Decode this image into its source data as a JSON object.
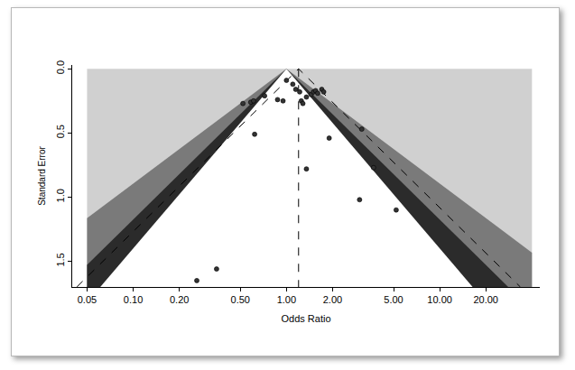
{
  "chart_data": {
    "type": "scatter",
    "x_label": "Odds Ratio",
    "y_label": "Standard Error",
    "log": "x",
    "grid": false,
    "xlim": [
      0.04,
      45
    ],
    "ylim": [
      1.7,
      -0.03
    ],
    "xticks": [
      0.05,
      {
        "value": 0.1,
        "label": "0.10"
      },
      {
        "value": 0.2,
        "label": "0.20"
      },
      {
        "value": 0.5,
        "label": "0.50"
      },
      {
        "value": 1,
        "label": "1.00"
      },
      {
        "value": 2,
        "label": "2.00"
      },
      {
        "value": 5,
        "label": "5.00"
      },
      {
        "value": 10,
        "label": "10.00"
      },
      {
        "value": 20,
        "label": "20.00"
      }
    ],
    "yticks": [
      {
        "value": 0,
        "label": "0.0"
      },
      0.5,
      {
        "value": 1,
        "label": "1.0"
      },
      {
        "value": 1.5,
        "label": "1.5"
      }
    ],
    "series": [
      {
        "type": "area",
        "color": "#d0d0d0",
        "x": [
          0.05,
          40,
          40,
          0.05
        ],
        "values": [
          0,
          0,
          1.7,
          1.7
        ]
      },
      {
        "type": "area",
        "color": "#7a7a7a",
        "x": [
          0.05,
          0.05,
          1,
          40,
          40
        ],
        "values": [
          1.7,
          1.163,
          0,
          1.432,
          1.7
        ]
      },
      {
        "type": "area",
        "color": "#2b2b2b",
        "x": [
          0.05,
          0.05,
          1,
          28.0
        ],
        "values": [
          1.7,
          1.528,
          0,
          1.7
        ]
      },
      {
        "type": "area",
        "color": "#ffffff",
        "x": [
          0.061,
          1,
          16.4
        ],
        "values": [
          1.7,
          0,
          1.7
        ]
      },
      {
        "type": "line",
        "line_style": "dashed",
        "color": "#000000",
        "x": [
          1.2,
          1.2
        ],
        "values": [
          0,
          1.7
        ]
      },
      {
        "type": "line",
        "line_style": "dashed",
        "color": "#000000",
        "x": [
          0.0429,
          1.2,
          33.6
        ],
        "values": [
          1.7,
          0,
          1.7
        ]
      },
      {
        "type": "scatter",
        "marker": "circle",
        "color": "#333333",
        "x": [
          0.52,
          0.585,
          0.61,
          0.72,
          0.62,
          0.875,
          0.95,
          1.0,
          1.1,
          1.15,
          1.22,
          1.25,
          1.28,
          1.35,
          1.35,
          1.45,
          1.5,
          1.55,
          1.6,
          1.7,
          1.75,
          1.9,
          3.1,
          3.7,
          3.0,
          5.2,
          0.26,
          0.35
        ],
        "values": [
          0.27,
          0.26,
          0.25,
          0.21,
          0.51,
          0.24,
          0.25,
          0.09,
          0.12,
          0.16,
          0.18,
          0.25,
          0.27,
          0.22,
          0.78,
          0.2,
          0.18,
          0.17,
          0.19,
          0.16,
          0.18,
          0.54,
          0.47,
          0.77,
          1.02,
          1.1,
          1.65,
          1.56
        ]
      }
    ]
  }
}
